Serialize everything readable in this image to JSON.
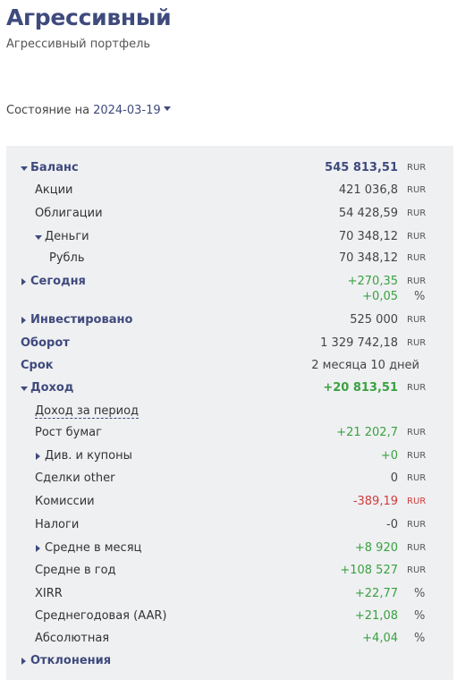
{
  "header": {
    "title": "Агрессивный",
    "subtitle": "Агрессивный портфель"
  },
  "state": {
    "label": "Состояние на",
    "date": "2024-03-19"
  },
  "currency": "RUR",
  "percent": "%",
  "rows": {
    "balance": {
      "label": "Баланс",
      "value": "545 813,51"
    },
    "stocks": {
      "label": "Акции",
      "value": "421 036,8"
    },
    "bonds": {
      "label": "Облигации",
      "value": "54 428,59"
    },
    "money": {
      "label": "Деньги",
      "value": "70 348,12"
    },
    "ruble": {
      "label": "Рубль",
      "value": "70 348,12"
    },
    "today": {
      "label": "Сегодня",
      "value": "+270,35",
      "value_pct": "+0,05"
    },
    "invested": {
      "label": "Инвестировано",
      "value": "525 000"
    },
    "turnover": {
      "label": "Оборот",
      "value": "1 329 742,18"
    },
    "term": {
      "label": "Срок",
      "value": "2 месяца 10 дней"
    },
    "income": {
      "label": "Доход",
      "value": "+20 813,51"
    },
    "income_period": {
      "label": "Доход за период"
    },
    "growth": {
      "label": "Рост бумаг",
      "value": "+21 202,7"
    },
    "dividends": {
      "label": "Див. и купоны",
      "value": "+0"
    },
    "deals_other": {
      "label": "Сделки other",
      "value": "0"
    },
    "commissions": {
      "label": "Комиссии",
      "value": "-389,19"
    },
    "taxes": {
      "label": "Налоги",
      "value": "-0"
    },
    "avg_month": {
      "label": "Средне в месяц",
      "value": "+8 920"
    },
    "avg_year": {
      "label": "Средне в год",
      "value": "+108 527"
    },
    "xirr": {
      "label": "XIRR",
      "value": "+22,77"
    },
    "aar": {
      "label": "Среднегодовая (AAR)",
      "value": "+21,08"
    },
    "absolute": {
      "label": "Абсолютная",
      "value": "+4,04"
    },
    "deviations": {
      "label": "Отклонения"
    }
  },
  "colors": {
    "accent": "#3f4a7d",
    "positive": "#3aa141",
    "negative": "#d13b3b",
    "panel_bg": "#eff0f2"
  }
}
